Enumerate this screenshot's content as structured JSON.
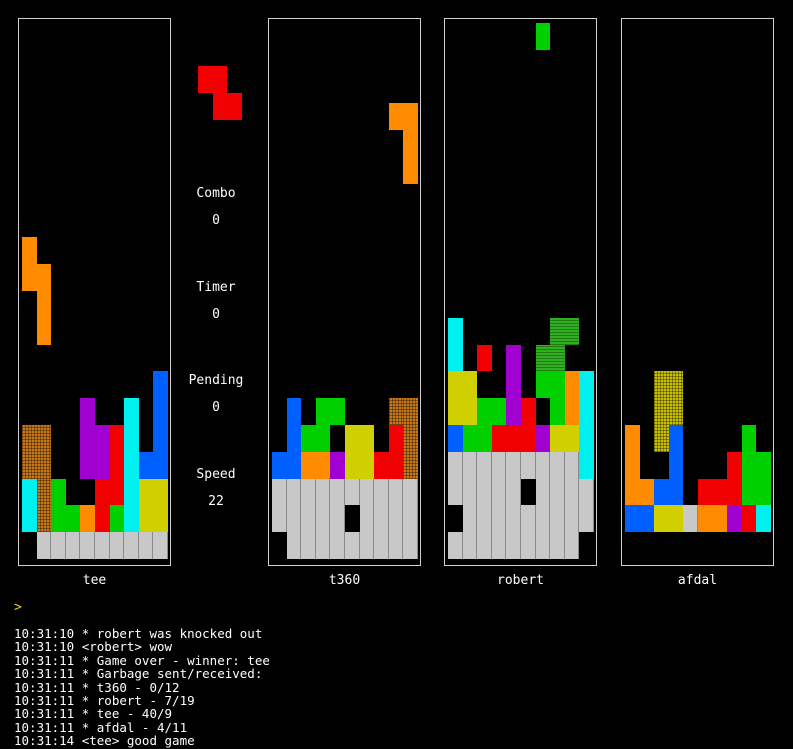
{
  "colors": {
    "gray": "#c8c8c8",
    "red": "#f00000",
    "orange": "#ff8c00",
    "green": "#00d000",
    "cyan": "#00f0f0",
    "blue": "#0060ff",
    "purple": "#a000d0",
    "yellow": "#d0d000",
    "darkgreen": "#30b020",
    "brownpattern": "#c87818",
    "yellowpattern": "#c8c000"
  },
  "players": [
    {
      "name": "tee",
      "cells": [
        [
          1,
          8,
          "orange"
        ],
        [
          1,
          9,
          "orange"
        ],
        [
          2,
          9,
          "orange"
        ],
        [
          2,
          10,
          "orange"
        ],
        [
          2,
          11,
          "orange"
        ],
        [
          10,
          13,
          "blue"
        ],
        [
          10,
          14,
          "blue"
        ],
        [
          10,
          15,
          "blue"
        ],
        [
          10,
          16,
          "blue"
        ],
        [
          5,
          14,
          "purple"
        ],
        [
          5,
          15,
          "purple"
        ],
        [
          5,
          16,
          "purple"
        ],
        [
          6,
          15,
          "purple"
        ],
        [
          6,
          16,
          "purple"
        ],
        [
          7,
          15,
          "red"
        ],
        [
          6,
          17,
          "red"
        ],
        [
          6,
          18,
          "red"
        ],
        [
          7,
          16,
          "red"
        ],
        [
          7,
          17,
          "red"
        ],
        [
          8,
          14,
          "cyan"
        ],
        [
          8,
          15,
          "cyan"
        ],
        [
          8,
          16,
          "cyan"
        ],
        [
          8,
          17,
          "cyan"
        ],
        [
          8,
          18,
          "cyan"
        ],
        [
          9,
          16,
          "blue"
        ],
        [
          9,
          17,
          "yellow"
        ],
        [
          10,
          17,
          "yellow"
        ],
        [
          9,
          18,
          "yellow"
        ],
        [
          10,
          18,
          "yellow"
        ],
        [
          1,
          15,
          "brownpattern"
        ],
        [
          2,
          15,
          "brownpattern"
        ],
        [
          1,
          16,
          "brownpattern"
        ],
        [
          2,
          16,
          "brownpattern"
        ],
        [
          2,
          17,
          "brownpattern"
        ],
        [
          2,
          18,
          "brownpattern"
        ],
        [
          1,
          17,
          "cyan"
        ],
        [
          1,
          18,
          "cyan"
        ],
        [
          3,
          17,
          "green"
        ],
        [
          3,
          18,
          "green"
        ],
        [
          4,
          18,
          "green"
        ],
        [
          5,
          18,
          "orange"
        ],
        [
          7,
          18,
          "green"
        ]
      ],
      "garbage": [
        [
          19,
          [
            1,
            2,
            3,
            4,
            5,
            6,
            8,
            9,
            10
          ]
        ],
        [
          20,
          [
            2,
            3,
            4,
            5,
            6,
            7,
            8,
            9,
            10
          ]
        ]
      ]
    },
    {
      "name": "t360",
      "cells": [
        [
          9,
          3,
          "orange"
        ],
        [
          10,
          3,
          "orange"
        ],
        [
          10,
          4,
          "orange"
        ],
        [
          10,
          5,
          "orange"
        ],
        [
          2,
          14,
          "blue"
        ],
        [
          2,
          15,
          "blue"
        ],
        [
          1,
          16,
          "blue"
        ],
        [
          2,
          16,
          "blue"
        ],
        [
          3,
          16,
          "orange"
        ],
        [
          4,
          16,
          "orange"
        ],
        [
          5,
          16,
          "purple"
        ],
        [
          4,
          14,
          "green"
        ],
        [
          5,
          14,
          "green"
        ],
        [
          3,
          15,
          "green"
        ],
        [
          4,
          15,
          "green"
        ],
        [
          6,
          15,
          "yellow"
        ],
        [
          7,
          15,
          "yellow"
        ],
        [
          6,
          16,
          "yellow"
        ],
        [
          7,
          16,
          "yellow"
        ],
        [
          9,
          15,
          "red"
        ],
        [
          8,
          16,
          "red"
        ],
        [
          9,
          16,
          "red"
        ],
        [
          9,
          14,
          "brownpattern"
        ],
        [
          10,
          14,
          "brownpattern"
        ],
        [
          10,
          15,
          "brownpattern"
        ],
        [
          10,
          16,
          "brownpattern"
        ]
      ],
      "garbage": [
        [
          17,
          [
            1,
            2,
            4,
            5,
            6,
            7,
            8,
            9,
            10
          ]
        ],
        [
          18,
          [
            1,
            2,
            3,
            4,
            5,
            6,
            7,
            8,
            9,
            10
          ]
        ],
        [
          19,
          [
            1,
            2,
            3,
            4,
            5,
            7,
            8,
            9,
            10
          ]
        ],
        [
          20,
          [
            2,
            3,
            4,
            5,
            6,
            7,
            8,
            9,
            10
          ]
        ]
      ]
    },
    {
      "name": "robert",
      "cells": [
        [
          7,
          0,
          "green"
        ],
        [
          1,
          11,
          "cyan"
        ],
        [
          1,
          12,
          "cyan"
        ],
        [
          3,
          12,
          "red"
        ],
        [
          5,
          12,
          "purple"
        ],
        [
          5,
          13,
          "purple"
        ],
        [
          5,
          14,
          "purple"
        ],
        [
          8,
          11,
          "darkgreen"
        ],
        [
          9,
          11,
          "darkgreen"
        ],
        [
          7,
          12,
          "darkgreen"
        ],
        [
          8,
          12,
          "darkgreen"
        ],
        [
          7,
          13,
          "green"
        ],
        [
          8,
          13,
          "green"
        ],
        [
          8,
          14,
          "green"
        ],
        [
          8,
          15,
          "green"
        ],
        [
          9,
          13,
          "orange"
        ],
        [
          9,
          14,
          "orange"
        ],
        [
          9,
          15,
          "orange"
        ],
        [
          10,
          13,
          "cyan"
        ],
        [
          10,
          14,
          "cyan"
        ],
        [
          10,
          15,
          "cyan"
        ],
        [
          10,
          16,
          "cyan"
        ],
        [
          1,
          13,
          "yellow"
        ],
        [
          2,
          13,
          "yellow"
        ],
        [
          1,
          14,
          "yellow"
        ],
        [
          2,
          14,
          "yellow"
        ],
        [
          3,
          14,
          "green"
        ],
        [
          4,
          14,
          "green"
        ],
        [
          2,
          15,
          "green"
        ],
        [
          3,
          15,
          "green"
        ],
        [
          6,
          14,
          "red"
        ],
        [
          4,
          15,
          "red"
        ],
        [
          5,
          15,
          "red"
        ],
        [
          6,
          15,
          "red"
        ],
        [
          7,
          15,
          "purple"
        ],
        [
          1,
          15,
          "blue"
        ],
        [
          8,
          15,
          "yellow"
        ],
        [
          9,
          15,
          "yellow"
        ]
      ],
      "garbage": [
        [
          16,
          [
            1,
            2,
            3,
            5,
            6,
            7,
            8,
            9,
            10
          ]
        ],
        [
          17,
          [
            1,
            2,
            3,
            4,
            5,
            6,
            7,
            8,
            9,
            10
          ]
        ],
        [
          18,
          [
            1,
            2,
            3,
            4,
            5,
            7,
            8,
            9,
            10
          ]
        ],
        [
          19,
          [
            2,
            3,
            4,
            5,
            6,
            7,
            8,
            9,
            10
          ]
        ],
        [
          20,
          [
            1,
            2,
            3,
            4,
            5,
            6,
            7,
            8,
            9
          ]
        ]
      ]
    },
    {
      "name": "afdal",
      "cells": [
        [
          3,
          13,
          "yellowpattern"
        ],
        [
          4,
          13,
          "yellowpattern"
        ],
        [
          3,
          14,
          "yellowpattern"
        ],
        [
          4,
          14,
          "yellowpattern"
        ],
        [
          3,
          15,
          "yellowpattern"
        ],
        [
          4,
          15,
          "yellowpattern"
        ],
        [
          1,
          15,
          "orange"
        ],
        [
          1,
          16,
          "orange"
        ],
        [
          1,
          17,
          "orange"
        ],
        [
          2,
          17,
          "orange"
        ],
        [
          4,
          15,
          "blue"
        ],
        [
          4,
          16,
          "blue"
        ],
        [
          3,
          17,
          "blue"
        ],
        [
          4,
          17,
          "blue"
        ],
        [
          1,
          18,
          "blue"
        ],
        [
          2,
          18,
          "blue"
        ],
        [
          3,
          18,
          "yellow"
        ],
        [
          4,
          18,
          "yellow"
        ],
        [
          9,
          15,
          "green"
        ],
        [
          9,
          16,
          "green"
        ],
        [
          10,
          16,
          "green"
        ],
        [
          9,
          17,
          "green"
        ],
        [
          10,
          17,
          "green"
        ],
        [
          8,
          16,
          "red"
        ],
        [
          6,
          17,
          "red"
        ],
        [
          7,
          17,
          "red"
        ],
        [
          8,
          17,
          "red"
        ],
        [
          6,
          18,
          "orange"
        ],
        [
          7,
          18,
          "orange"
        ],
        [
          8,
          18,
          "purple"
        ],
        [
          9,
          18,
          "red"
        ],
        [
          10,
          18,
          "cyan"
        ]
      ],
      "garbage": [
        [
          19,
          [
            1,
            2,
            3,
            5,
            6,
            7,
            8,
            9,
            10
          ]
        ]
      ]
    }
  ],
  "next_piece": {
    "color": "red",
    "cells": [
      [
        0,
        0
      ],
      [
        1,
        0
      ],
      [
        1,
        1
      ],
      [
        2,
        1
      ]
    ]
  },
  "stats": {
    "combo_label": "Combo",
    "combo_value": "0",
    "timer_label": "Timer",
    "timer_value": "0",
    "pending_label": "Pending",
    "pending_value": "0",
    "speed_label": "Speed",
    "speed_value": "22"
  },
  "prompt": ">",
  "chat": [
    "10:31:10 * robert was knocked out",
    "10:31:10 <robert> wow",
    "10:31:11 * Game over - winner: tee",
    "10:31:11 * Garbage sent/received:",
    "10:31:11 * t360 - 0/12",
    "10:31:11 * robert - 7/19",
    "10:31:11 * tee - 40/9",
    "10:31:11 * afdal - 4/11",
    "10:31:14 <tee> good game"
  ]
}
